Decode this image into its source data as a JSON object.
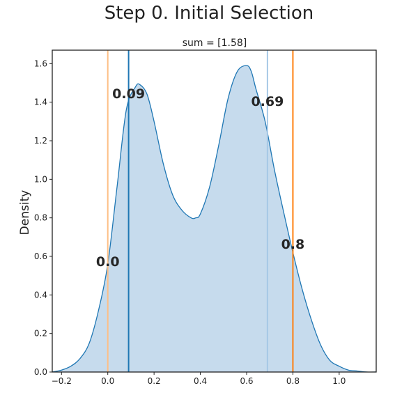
{
  "chart_data": {
    "type": "area",
    "title": "Step 0. Initial Selection",
    "subtitle": "sum = [1.58]",
    "xlabel": "",
    "ylabel": "Density",
    "xlim": [
      -0.24,
      1.16
    ],
    "ylim": [
      0,
      1.67
    ],
    "xticks": [
      -0.2,
      0.0,
      0.2,
      0.4,
      0.6,
      0.8,
      1.0
    ],
    "xtick_labels": [
      "−0.2",
      "0.0",
      "0.2",
      "0.4",
      "0.6",
      "0.8",
      "1.0"
    ],
    "yticks": [
      0.0,
      0.2,
      0.4,
      0.6,
      0.8,
      1.0,
      1.2,
      1.4,
      1.6
    ],
    "ytick_labels": [
      "0.0",
      "0.2",
      "0.4",
      "0.6",
      "0.8",
      "1.0",
      "1.2",
      "1.4",
      "1.6"
    ],
    "grid": false,
    "series": [
      {
        "fill_color": "#c6dbed",
        "line_color": "#1f77b4",
        "x": [
          -0.24,
          -0.2,
          -0.16,
          -0.12,
          -0.08,
          -0.04,
          0.0,
          0.04,
          0.08,
          0.12,
          0.14,
          0.17,
          0.2,
          0.24,
          0.28,
          0.32,
          0.36,
          0.38,
          0.4,
          0.44,
          0.48,
          0.52,
          0.56,
          0.6,
          0.62,
          0.64,
          0.68,
          0.72,
          0.76,
          0.8,
          0.84,
          0.88,
          0.92,
          0.96,
          1.0,
          1.04,
          1.08,
          1.12,
          1.16
        ],
        "y": [
          0.0,
          0.01,
          0.03,
          0.07,
          0.15,
          0.32,
          0.56,
          0.96,
          1.36,
          1.48,
          1.49,
          1.44,
          1.3,
          1.08,
          0.92,
          0.84,
          0.8,
          0.8,
          0.82,
          0.96,
          1.18,
          1.42,
          1.56,
          1.59,
          1.56,
          1.47,
          1.3,
          1.05,
          0.83,
          0.62,
          0.43,
          0.27,
          0.14,
          0.06,
          0.03,
          0.01,
          0.005,
          0.0,
          0.0
        ]
      }
    ],
    "vlines": [
      {
        "x": 0.0,
        "color": "#fdbf86"
      },
      {
        "x": 0.09,
        "color": "#1f77b4"
      },
      {
        "x": 0.69,
        "color": "#a6c8e6"
      },
      {
        "x": 0.8,
        "color": "#ff7f0e"
      }
    ],
    "annotations": [
      {
        "text": "0.0",
        "x": 0.0,
        "y": 0.55
      },
      {
        "text": "0.09",
        "x": 0.09,
        "y": 1.42
      },
      {
        "text": "0.69",
        "x": 0.69,
        "y": 1.38
      },
      {
        "text": "0.8",
        "x": 0.8,
        "y": 0.64
      }
    ]
  }
}
